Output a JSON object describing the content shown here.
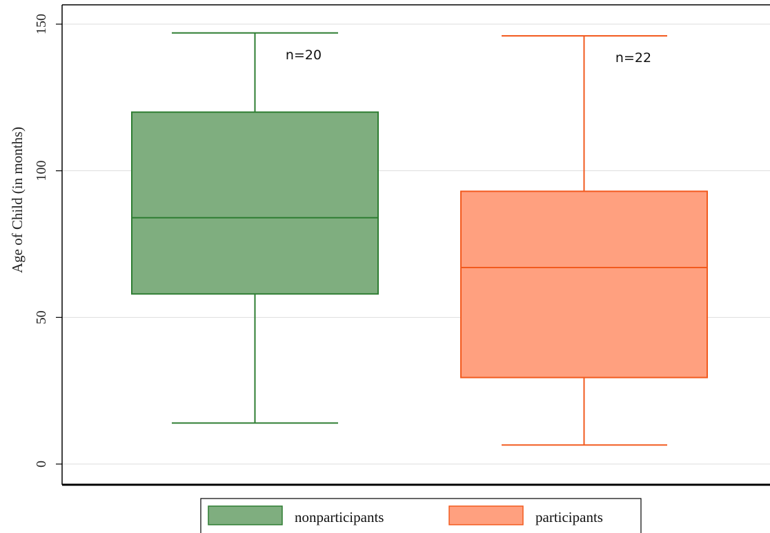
{
  "chart_data": {
    "type": "box",
    "ylabel": "Age of Child (in months)",
    "ylim": [
      -9,
      159
    ],
    "yticks": [
      0,
      50,
      100,
      150
    ],
    "grid": true,
    "legend_position": "bottom",
    "series": [
      {
        "name": "nonparticipants",
        "annotation": "n=20",
        "color_fill": "#7fae7f",
        "color_line": "#2e7d32",
        "whisker_low": 14,
        "q1": 58,
        "median": 84,
        "q3": 120,
        "whisker_high": 147
      },
      {
        "name": "participants",
        "annotation": "n=22",
        "color_fill": "#ffa07f",
        "color_line": "#f25a1e",
        "whisker_low": 6.5,
        "q1": 29.5,
        "median": 67,
        "q3": 93,
        "whisker_high": 146
      }
    ]
  }
}
